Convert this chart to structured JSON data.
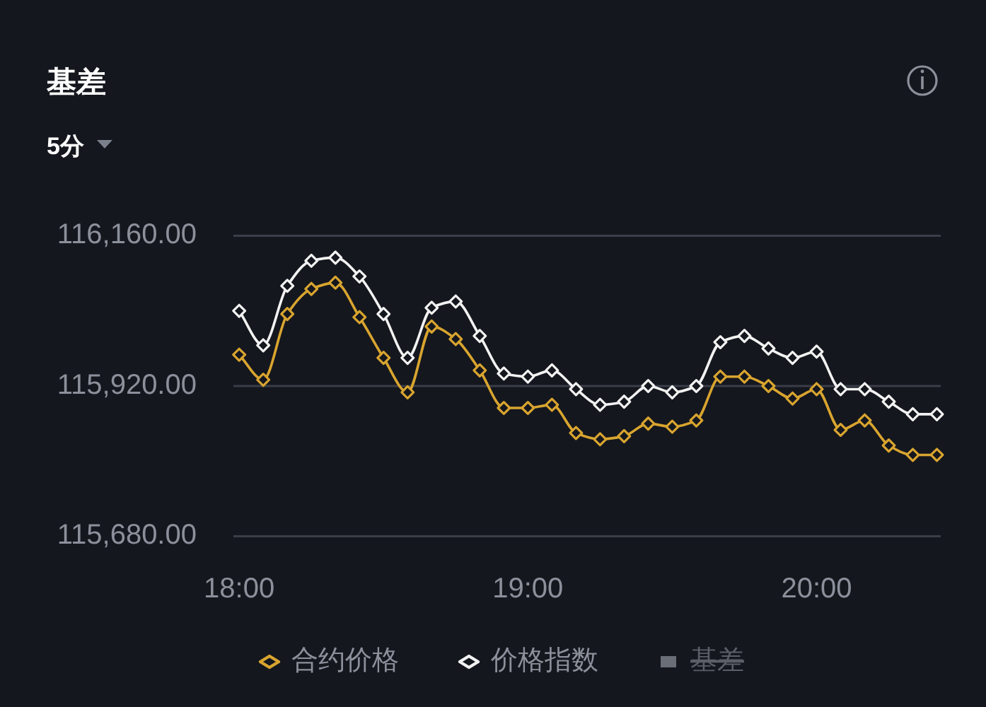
{
  "chart_data": {
    "type": "line",
    "title": "基差",
    "subtitle": "5分",
    "x": [
      18,
      18.0833,
      18.1667,
      18.25,
      18.3333,
      18.4167,
      18.5,
      18.5833,
      18.6667,
      18.75,
      18.8333,
      18.9167,
      19,
      19.0833,
      19.1667,
      19.25,
      19.3333,
      19.4167,
      19.5,
      19.5833,
      19.6667,
      19.75,
      19.8333,
      19.9167,
      20,
      20.0833,
      20.1667,
      20.25,
      20.3333,
      20.4167
    ],
    "series": [
      {
        "name": "合约价格",
        "color": "#d9a52f",
        "values": [
          115970,
          115930,
          116035,
          116075,
          116085,
          116030,
          115965,
          115910,
          116015,
          115995,
          115945,
          115885,
          115885,
          115890,
          115845,
          115835,
          115840,
          115860,
          115855,
          115865,
          115935,
          115935,
          115920,
          115900,
          115915,
          115850,
          115865,
          115825,
          115810,
          115810
        ]
      },
      {
        "name": "价格指数",
        "color": "#f2f2f2",
        "values": [
          116040,
          115985,
          116080,
          116120,
          116125,
          116095,
          116035,
          115965,
          116045,
          116055,
          116000,
          115940,
          115935,
          115945,
          115915,
          115890,
          115895,
          115920,
          115910,
          115920,
          115990,
          116000,
          115980,
          115965,
          115975,
          115915,
          115915,
          115895,
          115875,
          115875
        ]
      },
      {
        "name": "基差",
        "type": "bar",
        "color": "#6a6e76",
        "values": [
          null,
          null,
          null,
          null,
          null,
          null,
          null,
          null,
          null,
          null,
          null,
          null,
          null,
          null,
          null,
          null,
          null,
          null,
          null,
          null,
          null,
          null,
          null,
          null,
          null,
          null,
          null,
          null,
          null,
          null
        ]
      }
    ],
    "xlim": [
      17.98,
      20.43
    ],
    "xticks": [
      {
        "value": 18,
        "label": "18:00"
      },
      {
        "value": 19,
        "label": "19:00"
      },
      {
        "value": 20,
        "label": "20:00"
      }
    ],
    "ylim": [
      115680,
      116160
    ],
    "yticks": [
      {
        "value": 115680,
        "label": "115,680.00"
      },
      {
        "value": 115920,
        "label": "115,920.00"
      },
      {
        "value": 116160,
        "label": "116,160.00"
      }
    ],
    "grid": "y",
    "legend": "bottom",
    "marker": "diamond",
    "line_style": "solid"
  }
}
